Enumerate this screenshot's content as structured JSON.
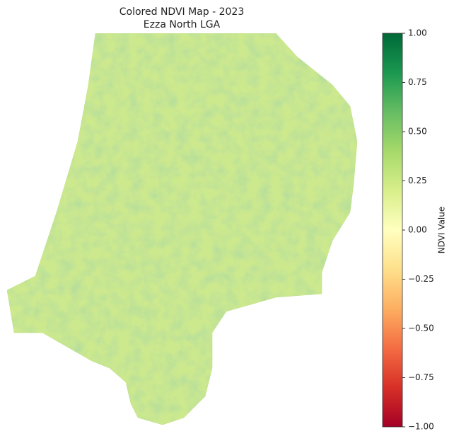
{
  "map": {
    "title_lines": [
      "Colored NDVI Map - 2023",
      "Ezza North LGA"
    ],
    "colorbar": {
      "label": "NDVI Value",
      "colormap": "RdYlGn",
      "lim": [
        -1,
        1
      ],
      "ticks": [
        {
          "value": 1,
          "label": "1.00"
        },
        {
          "value": 0.75,
          "label": "0.75"
        },
        {
          "value": 0.5,
          "label": "0.50"
        },
        {
          "value": 0.25,
          "label": "0.25"
        },
        {
          "value": 0,
          "label": "0.00"
        },
        {
          "value": -0.25,
          "label": "−0.25"
        },
        {
          "value": -0.5,
          "label": "−0.50"
        },
        {
          "value": -0.75,
          "label": "−0.75"
        },
        {
          "value": -1,
          "label": "−1.00"
        }
      ]
    }
  }
}
